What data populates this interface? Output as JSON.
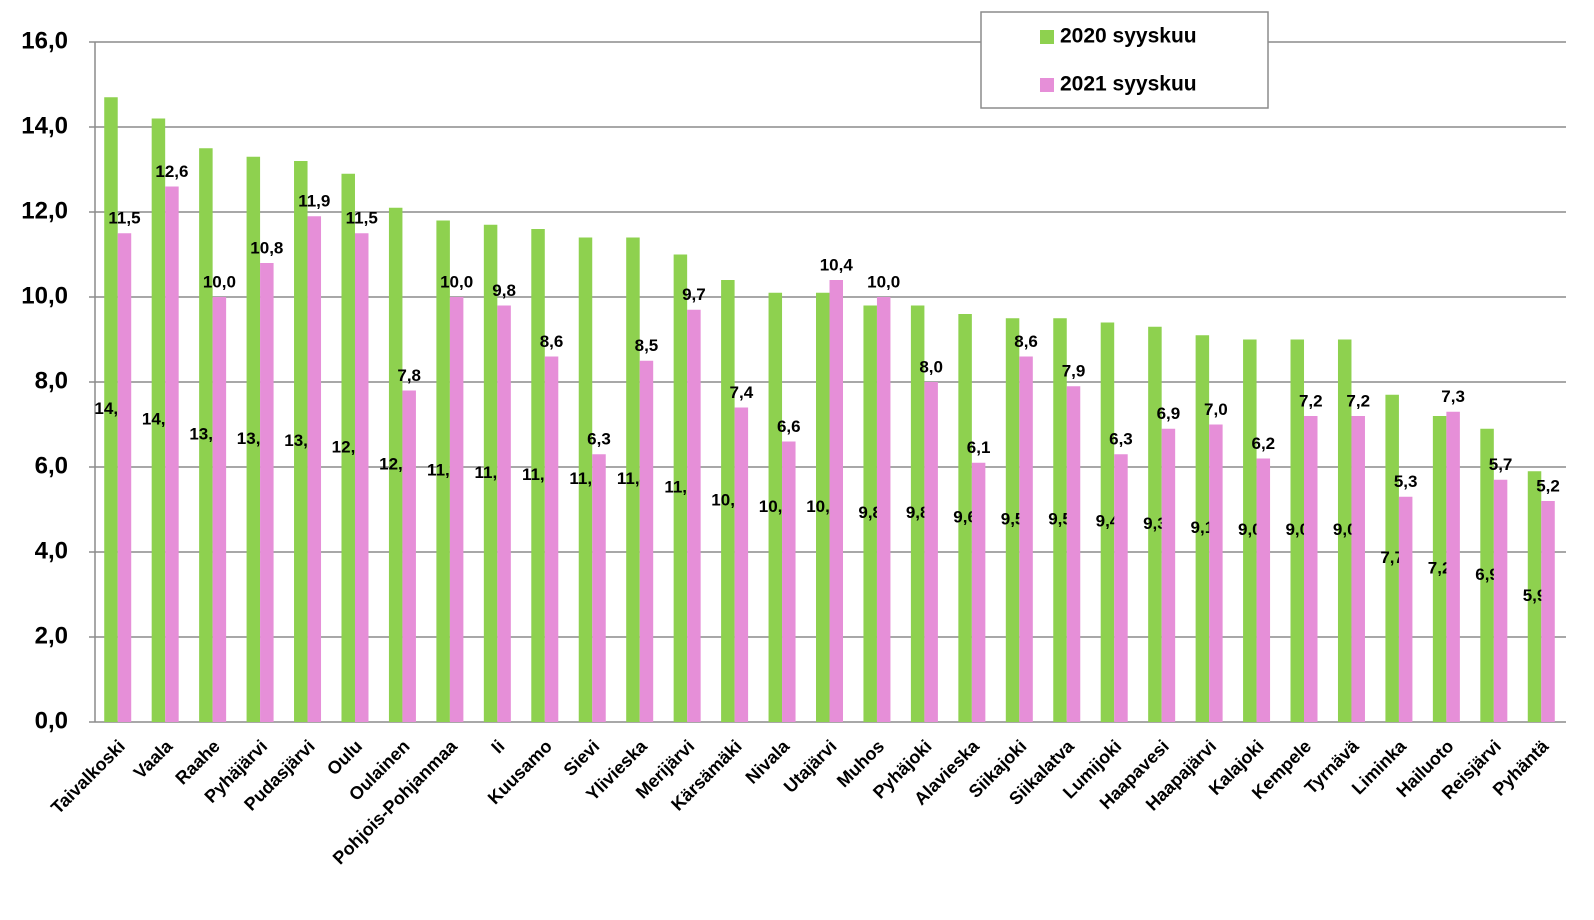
{
  "chart_data": {
    "type": "bar",
    "categories": [
      "Taivalkoski",
      "Vaala",
      "Raahe",
      "Pyhäjärvi",
      "Pudasjärvi",
      "Oulu",
      "Oulainen",
      "Pohjois-Pohjanmaa",
      "Ii",
      "Kuusamo",
      "Sievi",
      "Ylivieska",
      "Merijärvi",
      "Kärsämäki",
      "Nivala",
      "Utajärvi",
      "Muhos",
      "Pyhäjoki",
      "Alavieska",
      "Siikajoki",
      "Siikalatva",
      "Lumijoki",
      "Haapavesi",
      "Haapajärvi",
      "Kalajoki",
      "Kempele",
      "Tyrnävä",
      "Liminka",
      "Hailuoto",
      "Reisjärvi",
      "Pyhäntä"
    ],
    "series": [
      {
        "name": "2020 syyskuu",
        "color": "#8ed14f",
        "values": [
          14.7,
          14.2,
          13.5,
          13.3,
          13.2,
          12.9,
          12.1,
          11.8,
          11.7,
          11.6,
          11.4,
          11.4,
          11.0,
          10.4,
          10.1,
          10.1,
          9.8,
          9.8,
          9.6,
          9.5,
          9.5,
          9.4,
          9.3,
          9.1,
          9.0,
          9.0,
          9.0,
          7.7,
          7.2,
          6.9,
          5.9
        ],
        "value_labels": [
          "14,7",
          "14,2",
          "13,5",
          "13,3",
          "13,2",
          "12,9",
          "12,1",
          "11,8",
          "11,7",
          "11,6",
          "11,4",
          "11,4",
          "11,0",
          "10,4",
          "10,1",
          "10,1",
          "9,8",
          "9,8",
          "9,6",
          "9,5",
          "9,5",
          "9,4",
          "9,3",
          "9,1",
          "9,0",
          "9,0",
          "9,0",
          "7,7",
          "7,2",
          "6,9",
          "5,9"
        ]
      },
      {
        "name": "2021 syyskuu",
        "color": "#e68fd8",
        "values": [
          11.5,
          12.6,
          10.0,
          10.8,
          11.9,
          11.5,
          7.8,
          10.0,
          9.8,
          8.6,
          6.3,
          8.5,
          9.7,
          7.4,
          6.6,
          10.4,
          10.0,
          8.0,
          6.1,
          8.6,
          7.9,
          6.3,
          6.9,
          7.0,
          6.2,
          7.2,
          7.2,
          5.3,
          7.3,
          5.7,
          5.2
        ],
        "value_labels": [
          "11,5",
          "12,6",
          "10,0",
          "10,8",
          "11,9",
          "11,5",
          "7,8",
          "10,0",
          "9,8",
          "8,6",
          "6,3",
          "8,5",
          "9,7",
          "7,4",
          "6,6",
          "10,4",
          "10,0",
          "8,0",
          "6,1",
          "8,6",
          "7,9",
          "6,3",
          "6,9",
          "7,0",
          "6,2",
          "7,2",
          "7,2",
          "5,3",
          "7,3",
          "5,7",
          "5,2"
        ]
      }
    ],
    "ylim": [
      0,
      16
    ],
    "yticks": [
      {
        "value": 0,
        "label": "0,0"
      },
      {
        "value": 2,
        "label": "2,0"
      },
      {
        "value": 4,
        "label": "4,0"
      },
      {
        "value": 6,
        "label": "6,0"
      },
      {
        "value": 8,
        "label": "8,0"
      },
      {
        "value": 10,
        "label": "10,0"
      },
      {
        "value": 12,
        "label": "12,0"
      },
      {
        "value": 14,
        "label": "14,0"
      },
      {
        "value": 16,
        "label": "16,0"
      }
    ],
    "grid": true
  }
}
